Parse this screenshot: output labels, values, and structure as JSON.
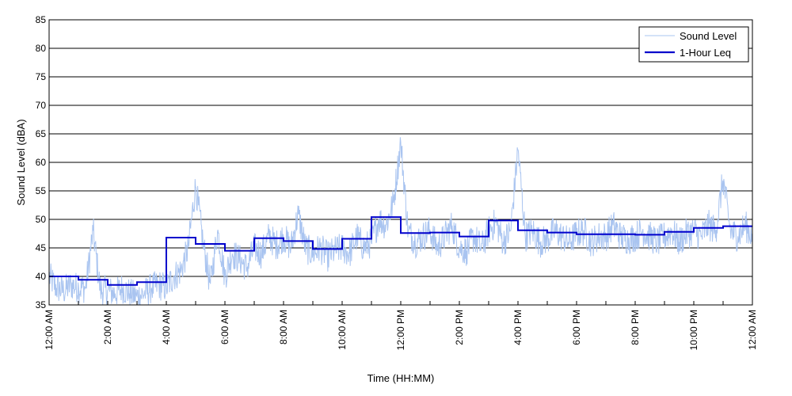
{
  "chart_data": {
    "type": "line",
    "title": "",
    "xlabel": "Time (HH:MM)",
    "ylabel": "Sound Level (dBA)",
    "ylim": [
      35,
      85
    ],
    "yticks": [
      35,
      40,
      45,
      50,
      55,
      60,
      65,
      70,
      75,
      80,
      85
    ],
    "xlim_hours": [
      0,
      24
    ],
    "xtick_labels": [
      "12:00 AM",
      "2:00 AM",
      "4:00 AM",
      "6:00 AM",
      "8:00 AM",
      "10:00 AM",
      "12:00 PM",
      "2:00 PM",
      "4:00 PM",
      "6:00 PM",
      "8:00 PM",
      "10:00 PM",
      "12:00 AM"
    ],
    "grid": "horizontal",
    "legend_position": "top-right",
    "legend": [
      "Sound Level",
      "1-Hour Leq"
    ],
    "colors": {
      "sound_level": "#a9c4f0",
      "leq": "#0000cc"
    },
    "series": [
      {
        "name": "Sound Level",
        "style": "thin noisy line (sampled profile, approx.)",
        "hours": [
          0,
          0.25,
          0.5,
          0.75,
          1,
          1.25,
          1.5,
          1.75,
          2,
          2.25,
          2.5,
          2.75,
          3,
          3.25,
          3.5,
          3.75,
          4,
          4.25,
          4.5,
          4.75,
          5,
          5.25,
          5.5,
          5.75,
          6,
          6.25,
          6.5,
          6.75,
          7,
          7.25,
          7.5,
          7.75,
          8,
          8.25,
          8.5,
          8.75,
          9,
          9.25,
          9.5,
          9.75,
          10,
          10.25,
          10.5,
          10.75,
          11,
          11.25,
          11.5,
          11.75,
          12,
          12.25,
          12.5,
          12.75,
          13,
          13.25,
          13.5,
          13.75,
          14,
          14.25,
          14.5,
          14.75,
          15,
          15.25,
          15.5,
          15.75,
          16,
          16.25,
          16.5,
          16.75,
          17,
          17.25,
          17.5,
          17.75,
          18,
          18.25,
          18.5,
          18.75,
          19,
          19.25,
          19.5,
          19.75,
          20,
          20.25,
          20.5,
          20.75,
          21,
          21.25,
          21.5,
          21.75,
          22,
          22.25,
          22.5,
          22.75,
          23,
          23.25,
          23.5,
          23.75,
          24
        ],
        "values": [
          40,
          38,
          37.5,
          38.5,
          38,
          38,
          48,
          37.5,
          37.5,
          37,
          38,
          37,
          36.5,
          37,
          38,
          38.5,
          38,
          40,
          41,
          45,
          56,
          46,
          38.5,
          48,
          40,
          44,
          43,
          41.5,
          45,
          44,
          47,
          45.5,
          47,
          45,
          51,
          45,
          44,
          45,
          43.5,
          44.5,
          45,
          44,
          47,
          45,
          46,
          50,
          49,
          53,
          63.5,
          48,
          46,
          47,
          48,
          45,
          47,
          49,
          45,
          44.5,
          47,
          45,
          48,
          49.5,
          46,
          48,
          62.5,
          47,
          48,
          46,
          46.5,
          48,
          47,
          46,
          47.5,
          48,
          46,
          47,
          47,
          49,
          47,
          46.5,
          47,
          48,
          47,
          46,
          47,
          48,
          46,
          47.5,
          48,
          47,
          49,
          48,
          57,
          48,
          47,
          49,
          47
        ]
      },
      {
        "name": "1-Hour Leq",
        "style": "step (hourly)",
        "hours": [
          0,
          1,
          2,
          3,
          4,
          5,
          6,
          7,
          8,
          9,
          10,
          11,
          12,
          13,
          14,
          15,
          16,
          17,
          18,
          19,
          20,
          21,
          22,
          23
        ],
        "values": [
          40,
          39.4,
          38.5,
          39,
          46.8,
          45.7,
          44.5,
          46.7,
          46.2,
          44.8,
          46.6,
          50.4,
          47.6,
          47.7,
          47,
          49.8,
          48.1,
          47.7,
          47.4,
          47.4,
          47.3,
          47.8,
          48.5,
          48.8
        ]
      }
    ]
  }
}
